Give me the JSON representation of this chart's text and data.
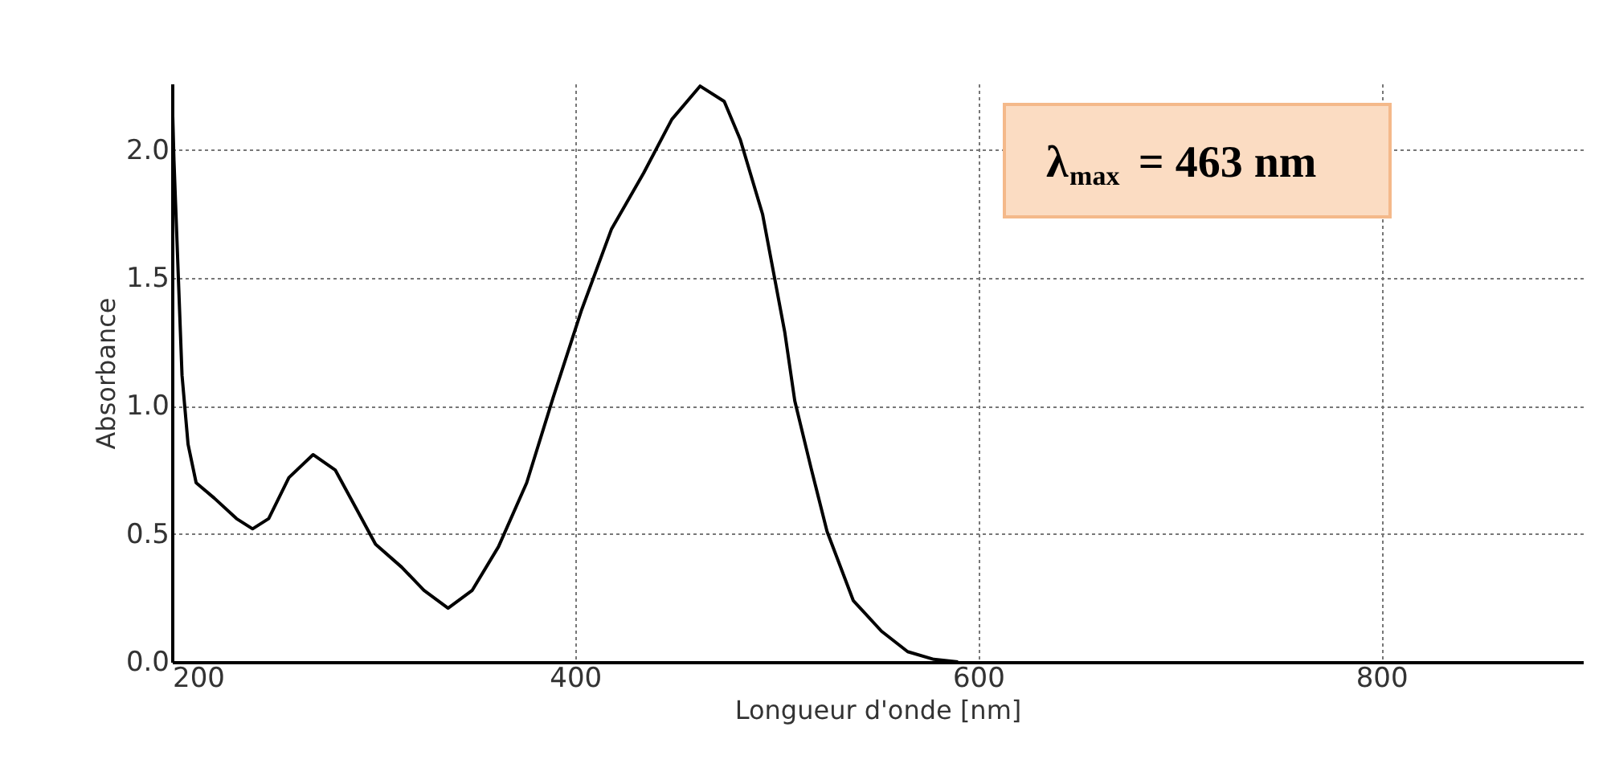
{
  "chart_data": {
    "type": "line",
    "xlabel": "Longueur d'onde [nm]",
    "ylabel": "Absorbance",
    "xlim": [
      200,
      900
    ],
    "xticks": [
      200,
      400,
      600,
      800
    ],
    "ylim": [
      0,
      2.26
    ],
    "yticks": [
      {
        "value": 0,
        "label": "0.0"
      },
      0.5,
      {
        "value": 1,
        "label": "1.0"
      },
      1.5,
      {
        "value": 2,
        "label": "2.0"
      }
    ],
    "grid": true,
    "line_style": "solid",
    "annotations": [
      "λ$_{max}$ = 463 nm"
    ],
    "series": [
      {
        "color": "#000000",
        "x": [
          200,
          201,
          205,
          208,
          212,
          221,
          232,
          240,
          248,
          258,
          270,
          281,
          290,
          301,
          314,
          325,
          337,
          349,
          362,
          376,
          389,
          403,
          418,
          434,
          448,
          462,
          474,
          482,
          493,
          504,
          509,
          517,
          525,
          538,
          552,
          565,
          578,
          590
        ],
        "values": [
          2.25,
          1.96,
          1.12,
          0.85,
          0.7,
          0.64,
          0.56,
          0.52,
          0.56,
          0.72,
          0.81,
          0.75,
          0.62,
          0.46,
          0.37,
          0.28,
          0.21,
          0.28,
          0.45,
          0.7,
          1.03,
          1.37,
          1.69,
          1.91,
          2.12,
          2.25,
          2.19,
          2.04,
          1.75,
          1.29,
          1.02,
          0.76,
          0.51,
          0.24,
          0.12,
          0.04,
          0.01,
          0.0
        ]
      }
    ]
  }
}
